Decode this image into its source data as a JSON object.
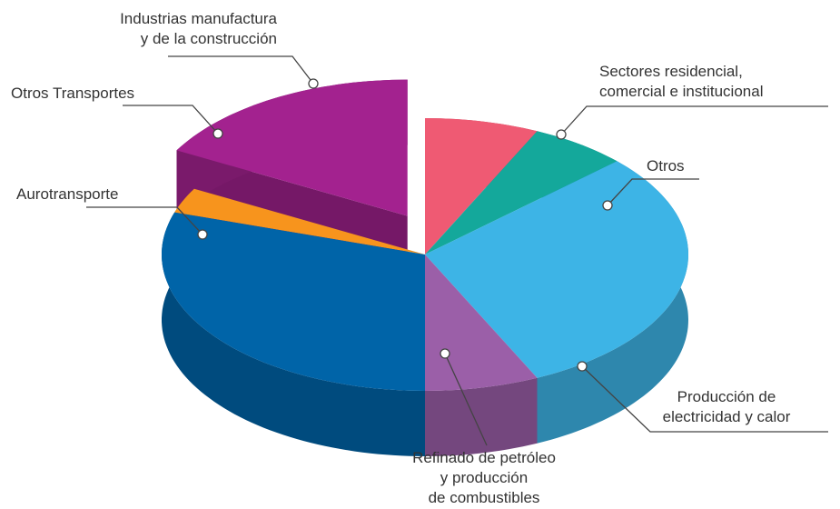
{
  "chart_data": {
    "type": "pie3d",
    "categories": [
      "Sectores residencial,\ncomercial e institucional",
      "Otros",
      "Producción de\nelectricidad y calor",
      "Refinado de petróleo\ny producción\nde combustibles",
      "Aurotransporte",
      "Otros Transportes",
      "Industrias manufactura\ny de la construcción"
    ],
    "values": [
      7,
      6,
      30,
      7,
      30,
      3,
      17
    ],
    "colors": [
      "#ef5a73",
      "#14a89b",
      "#3db4e6",
      "#9b5fa8",
      "#0064a8",
      "#f7941d",
      "#a3228f"
    ],
    "explode": [
      false,
      false,
      false,
      false,
      false,
      false,
      true
    ]
  }
}
